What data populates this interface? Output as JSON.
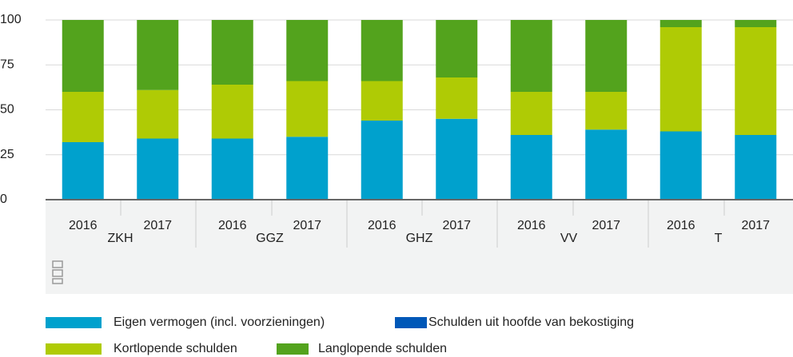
{
  "chart_data": {
    "type": "stacked-bar",
    "categories": [
      "2016",
      "2017",
      "2016",
      "2017",
      "2016",
      "2017",
      "2016",
      "2017",
      "2016",
      "2017"
    ],
    "groups": [
      "ZKH",
      "GGZ",
      "GHZ",
      "VV",
      "T"
    ],
    "series": [
      {
        "name": "Eigen vermogen (incl. voorzieningen)",
        "color": "#00a1cd",
        "values": [
          32,
          34,
          34,
          35,
          44,
          45,
          36,
          39,
          38,
          36
        ]
      },
      {
        "name": "Schulden uit hoofde van bekostiging",
        "color": "#0058b8",
        "values": [
          0,
          0,
          0,
          0,
          0,
          0,
          0,
          0,
          0,
          0
        ]
      },
      {
        "name": "Kortlopende schulden",
        "color": "#afcb05",
        "values": [
          28,
          27,
          30,
          31,
          22,
          23,
          24,
          21,
          58,
          60
        ]
      },
      {
        "name": "Langlopende schulden",
        "color": "#53a31d",
        "values": [
          40,
          39,
          36,
          34,
          34,
          32,
          40,
          40,
          4,
          4
        ]
      }
    ],
    "ylim": [
      0,
      100
    ],
    "yticks": [
      0,
      25,
      50,
      75,
      100
    ],
    "grid": true
  }
}
